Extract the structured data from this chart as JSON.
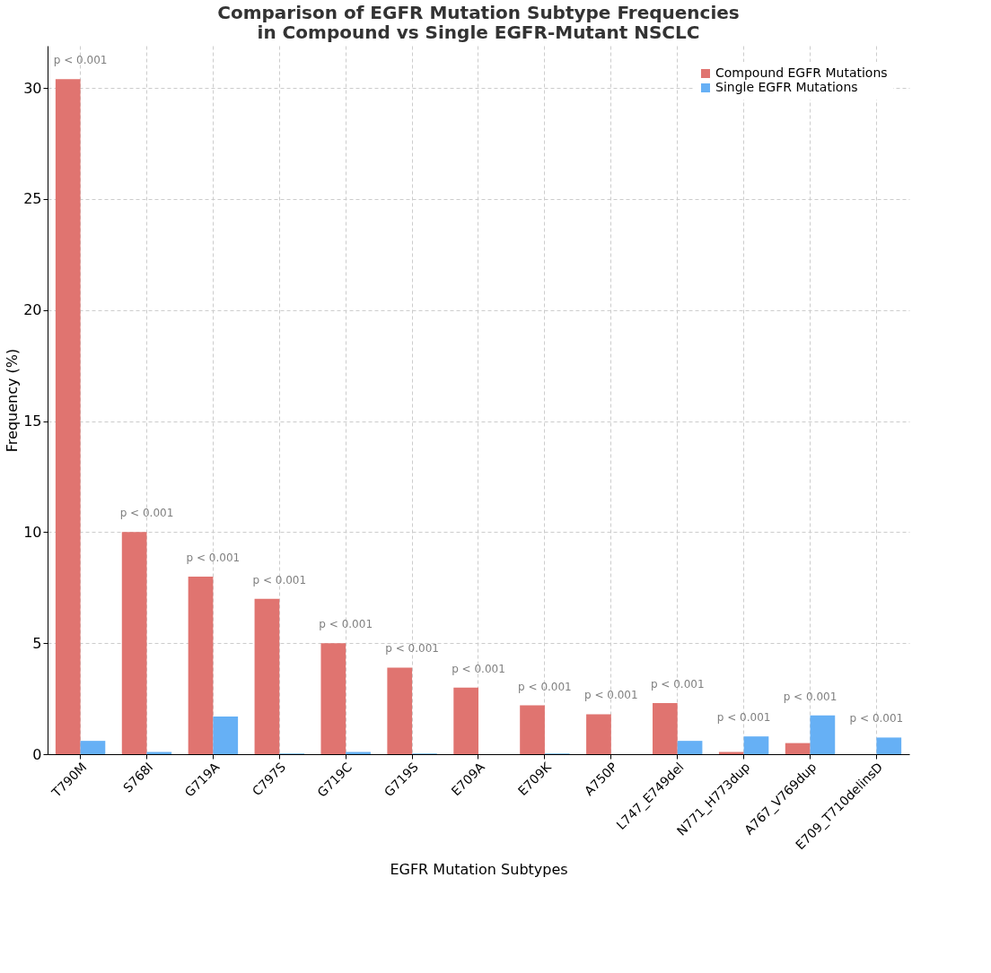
{
  "chart_data": {
    "type": "bar",
    "title": "Comparison of EGFR Mutation Subtype Frequencies\nin Compound vs Single EGFR-Mutant NSCLC",
    "xlabel": "EGFR Mutation Subtypes",
    "ylabel": "Frequency (%)",
    "categories": [
      "T790M",
      "S768I",
      "G719A",
      "C797S",
      "G719C",
      "G719S",
      "E709A",
      "E709K",
      "A750P",
      "L747_E749del",
      "N771_H773dup",
      "A767_V769dup",
      "E709_T710delinsD"
    ],
    "series": [
      {
        "name": "Compound EGFR Mutations",
        "color": "#e07470",
        "values": [
          30.4,
          10.0,
          8.0,
          7.0,
          5.0,
          3.9,
          3.0,
          2.2,
          1.8,
          2.3,
          0.1,
          0.5,
          0
        ]
      },
      {
        "name": "Single EGFR Mutations",
        "color": "#66b0f5",
        "values": [
          0.6,
          0.1,
          1.7,
          0.03,
          0.1,
          0.03,
          0,
          0.03,
          0,
          0.6,
          0.8,
          1.75,
          0.75
        ]
      }
    ],
    "ylim": [
      0,
      31.9
    ],
    "yticks": [
      0,
      5,
      10,
      15,
      20,
      25,
      30
    ],
    "grid": true,
    "legend": "top right",
    "annotations": [
      "p < 0.001",
      "p < 0.001",
      "p < 0.001",
      "p < 0.001",
      "p < 0.001",
      "p < 0.001",
      "p < 0.001",
      "p < 0.001",
      "p < 0.001",
      "p < 0.001",
      "p < 0.001",
      "p < 0.001",
      "p < 0.001"
    ]
  }
}
